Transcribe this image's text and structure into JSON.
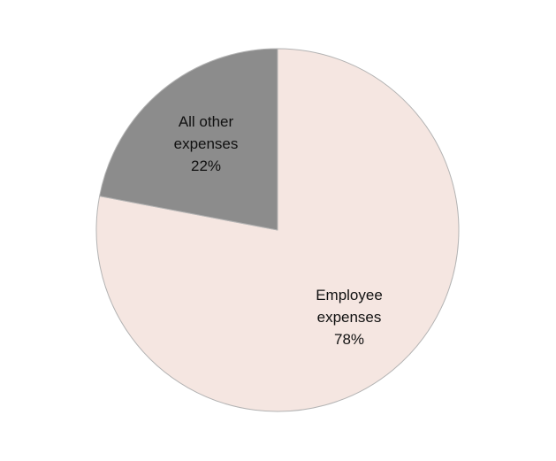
{
  "chart_data": {
    "type": "pie",
    "slices": [
      {
        "label_lines": [
          "Employee",
          "expenses"
        ],
        "value": 78,
        "value_label": "78%",
        "color": "#f5e6e1"
      },
      {
        "label_lines": [
          "All other",
          "expenses"
        ],
        "value": 22,
        "value_label": "22%",
        "color": "#8c8c8c"
      }
    ],
    "stroke_color": "#b3b3b3",
    "start_angle_deg": 0,
    "direction": "clockwise",
    "legend": "none",
    "data_labels": "inside"
  }
}
